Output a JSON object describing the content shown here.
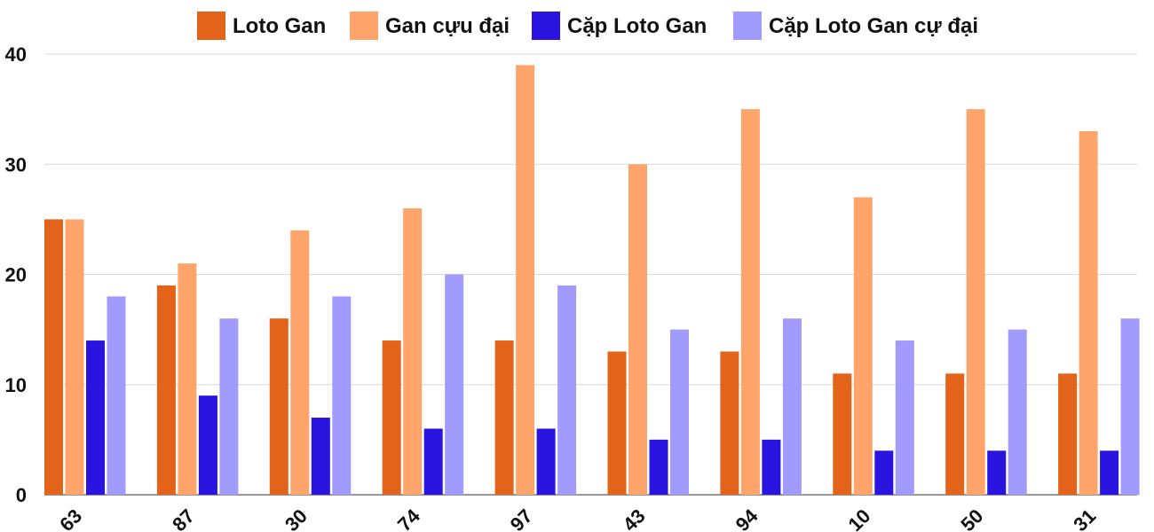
{
  "chart_data": {
    "type": "bar",
    "categories": [
      "63",
      "87",
      "30",
      "74",
      "97",
      "43",
      "94",
      "10",
      "50",
      "31"
    ],
    "series": [
      {
        "name": "Loto Gan",
        "color": "#e4631a",
        "values": [
          25,
          19,
          16,
          14,
          14,
          13,
          13,
          11,
          11,
          11
        ]
      },
      {
        "name": "Gan cựu đại",
        "color": "#ffa56b",
        "values": [
          25,
          21,
          24,
          26,
          39,
          30,
          35,
          27,
          35,
          33
        ]
      },
      {
        "name": "Cặp Loto Gan",
        "color": "#2a14e0",
        "values": [
          14,
          9,
          7,
          6,
          6,
          5,
          5,
          4,
          4,
          4
        ]
      },
      {
        "name": "Cặp Loto Gan cự đại",
        "color": "#a29bfe",
        "values": [
          18,
          16,
          18,
          20,
          19,
          15,
          16,
          14,
          15,
          16
        ]
      }
    ],
    "ylim": [
      0,
      40
    ],
    "yticks": [
      0,
      10,
      20,
      30,
      40
    ],
    "grid": true,
    "legend": "top"
  }
}
